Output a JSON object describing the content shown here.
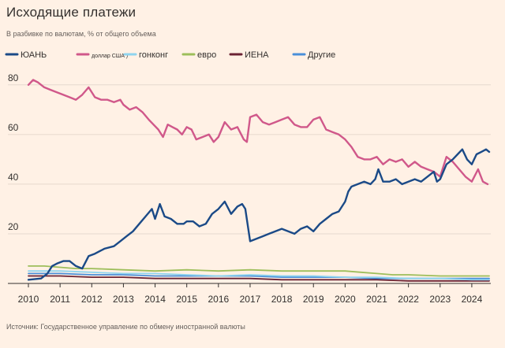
{
  "chart_data": {
    "type": "line",
    "title": "Исходящие платежи",
    "subtitle": "В разбивке по валютам, % от общего объема",
    "source": "Источник: Государственное управление по обмену иностранной валюты",
    "xlabel": "",
    "ylabel": "",
    "xlim": [
      2010,
      2024.6
    ],
    "ylim": [
      0,
      85
    ],
    "y_ticks": [
      80,
      60,
      40,
      20
    ],
    "x_ticks": [
      "2010",
      "2011",
      "2012",
      "2013",
      "2014",
      "2015",
      "2016",
      "2017",
      "2018",
      "2019",
      "2020",
      "2021",
      "2022",
      "2023",
      "2024"
    ],
    "grid": true,
    "legend_position": "top",
    "series": [
      {
        "name": "ЮАНЬ",
        "color": "#1b4a87",
        "x": [
          2010.0,
          2010.4,
          2010.6,
          2010.75,
          2010.9,
          2011.1,
          2011.3,
          2011.5,
          2011.7,
          2011.9,
          2012.1,
          2012.4,
          2012.7,
          2012.9,
          2013.1,
          2013.3,
          2013.5,
          2013.7,
          2013.9,
          2014.0,
          2014.15,
          2014.3,
          2014.5,
          2014.7,
          2014.9,
          2015.0,
          2015.2,
          2015.4,
          2015.6,
          2015.8,
          2016.0,
          2016.2,
          2016.4,
          2016.6,
          2016.75,
          2016.85,
          2017.0,
          2017.2,
          2017.4,
          2017.6,
          2017.8,
          2018.0,
          2018.2,
          2018.4,
          2018.6,
          2018.8,
          2019.0,
          2019.2,
          2019.4,
          2019.6,
          2019.8,
          2020.0,
          2020.1,
          2020.2,
          2020.4,
          2020.6,
          2020.8,
          2020.95,
          2021.05,
          2021.2,
          2021.4,
          2021.6,
          2021.8,
          2022.0,
          2022.2,
          2022.4,
          2022.6,
          2022.8,
          2022.9,
          2023.0,
          2023.2,
          2023.4,
          2023.55,
          2023.7,
          2023.85,
          2024.0,
          2024.15,
          2024.3,
          2024.45,
          2024.55
        ],
        "values": [
          1.5,
          2,
          4,
          7,
          8,
          9,
          9,
          7,
          6,
          11,
          12,
          14,
          15,
          17,
          19,
          21,
          24,
          27,
          30,
          26,
          32,
          27,
          26,
          24,
          24,
          25,
          25,
          23,
          24,
          28,
          30,
          33,
          28,
          31,
          32,
          30,
          17,
          18,
          19,
          20,
          21,
          22,
          21,
          20,
          22,
          23,
          21,
          24,
          26,
          28,
          29,
          33,
          37,
          39,
          40,
          41,
          40,
          42,
          46,
          41,
          41,
          42,
          40,
          41,
          42,
          41,
          43,
          45,
          41,
          42,
          48,
          50,
          52,
          54,
          50,
          48,
          52,
          53,
          54,
          53
        ]
      },
      {
        "name": "доллар США )",
        "color": "#d0588a",
        "x": [
          2010.0,
          2010.15,
          2010.3,
          2010.5,
          2010.7,
          2010.9,
          2011.1,
          2011.3,
          2011.5,
          2011.7,
          2011.9,
          2012.1,
          2012.3,
          2012.5,
          2012.7,
          2012.9,
          2013.0,
          2013.2,
          2013.4,
          2013.6,
          2013.8,
          2013.95,
          2014.1,
          2014.25,
          2014.4,
          2014.55,
          2014.7,
          2014.85,
          2015.0,
          2015.15,
          2015.3,
          2015.5,
          2015.7,
          2015.85,
          2016.0,
          2016.2,
          2016.4,
          2016.6,
          2016.8,
          2016.9,
          2017.0,
          2017.2,
          2017.4,
          2017.6,
          2017.8,
          2018.0,
          2018.2,
          2018.4,
          2018.6,
          2018.8,
          2019.0,
          2019.2,
          2019.4,
          2019.6,
          2019.8,
          2020.0,
          2020.2,
          2020.4,
          2020.6,
          2020.8,
          2021.0,
          2021.2,
          2021.4,
          2021.6,
          2021.8,
          2022.0,
          2022.2,
          2022.4,
          2022.6,
          2022.8,
          2023.0,
          2023.2,
          2023.4,
          2023.6,
          2023.8,
          2024.0,
          2024.2,
          2024.35,
          2024.5
        ],
        "values": [
          80,
          82,
          81,
          79,
          78,
          77,
          76,
          75,
          74,
          76,
          79,
          75,
          74,
          74,
          73,
          74,
          72,
          70,
          71,
          69,
          66,
          64,
          62,
          59,
          64,
          63,
          62,
          60,
          63,
          62,
          58,
          59,
          60,
          57,
          59,
          65,
          62,
          63,
          58,
          57,
          67,
          68,
          65,
          64,
          65,
          66,
          67,
          64,
          63,
          63,
          66,
          67,
          62,
          61,
          60,
          58,
          55,
          51,
          50,
          50,
          51,
          48,
          50,
          49,
          50,
          47,
          49,
          47,
          46,
          45,
          43,
          51,
          49,
          46,
          43,
          41,
          46,
          41,
          40
        ]
      },
      {
        "name": "гонконг",
        "color": "#8fd4ef",
        "x": [
          2010.0,
          2011.0,
          2012.0,
          2013.0,
          2014.0,
          2015.0,
          2016.0,
          2017.0,
          2018.0,
          2019.0,
          2020.0,
          2021.0,
          2022.0,
          2023.0,
          2024.0,
          2024.55
        ],
        "values": [
          5,
          5,
          4.5,
          4,
          4,
          3.5,
          3,
          3.5,
          3,
          3,
          2.5,
          2.5,
          2,
          2,
          1.5,
          1.5
        ]
      },
      {
        "name": "евро",
        "color": "#9dbe5a",
        "x": [
          2010.0,
          2010.5,
          2011.0,
          2011.5,
          2012.0,
          2013.0,
          2014.0,
          2015.0,
          2016.0,
          2017.0,
          2018.0,
          2019.0,
          2020.0,
          2020.5,
          2021.0,
          2021.5,
          2022.0,
          2023.0,
          2024.0,
          2024.55
        ],
        "values": [
          7,
          7,
          6.5,
          6,
          6,
          5.5,
          5,
          5.5,
          5,
          5.5,
          5,
          5,
          5,
          4.5,
          4,
          3.5,
          3.5,
          3,
          3,
          3
        ]
      },
      {
        "name": "ИЕНА",
        "color": "#6b2233",
        "x": [
          2010.0,
          2011.0,
          2012.0,
          2013.0,
          2014.0,
          2015.0,
          2016.0,
          2017.0,
          2018.0,
          2019.0,
          2020.0,
          2021.0,
          2022.0,
          2023.0,
          2024.0,
          2024.55
        ],
        "values": [
          3,
          3,
          2.5,
          2.5,
          2,
          2,
          2,
          2,
          1.5,
          1.5,
          1.5,
          1.5,
          1,
          1,
          1,
          1
        ]
      },
      {
        "name": "Другие",
        "color": "#4a8fd9",
        "x": [
          2010.0,
          2011.0,
          2012.0,
          2013.0,
          2014.0,
          2015.0,
          2016.0,
          2017.0,
          2018.0,
          2019.0,
          2020.0,
          2021.0,
          2022.0,
          2023.0,
          2024.0,
          2024.55
        ],
        "values": [
          4,
          4,
          3.5,
          3.5,
          3,
          3,
          3,
          3,
          2.5,
          2.5,
          2.5,
          2,
          2,
          2,
          2,
          2
        ]
      }
    ]
  }
}
